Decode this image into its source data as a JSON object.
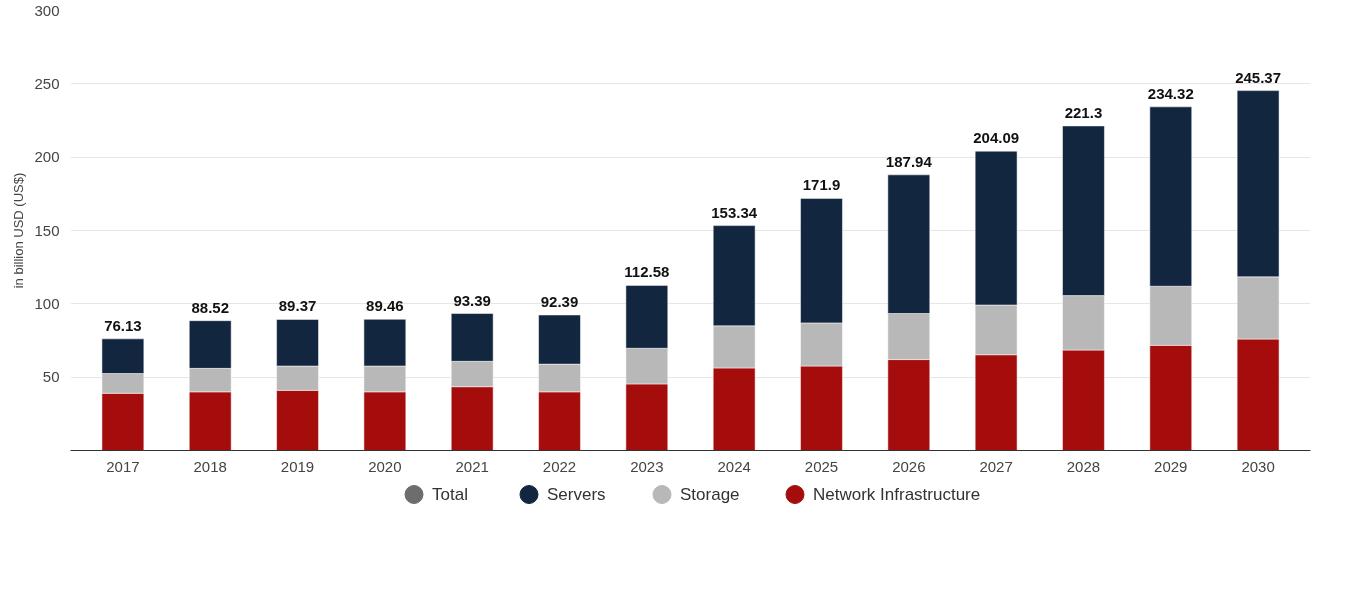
{
  "chart_data": {
    "type": "bar",
    "stacked": true,
    "ylabel": "in billion USD (US$)",
    "categories": [
      "2017",
      "2018",
      "2019",
      "2020",
      "2021",
      "2022",
      "2023",
      "2024",
      "2025",
      "2026",
      "2027",
      "2028",
      "2029",
      "2030"
    ],
    "series": [
      {
        "name": "Total",
        "color": "#6d6d6d",
        "values": [
          null,
          null,
          null,
          null,
          null,
          null,
          null,
          null,
          null,
          null,
          null,
          null,
          null,
          null
        ]
      },
      {
        "name": "Network Infrastructure",
        "color": "#a50d0d",
        "values": [
          39,
          40,
          41,
          40,
          43.5,
          40,
          45.4,
          56.3,
          57.6,
          62,
          65.3,
          68.5,
          71.7,
          76
        ]
      },
      {
        "name": "Storage",
        "color": "#b8b8b8",
        "values": [
          13.5,
          16,
          16.6,
          17.6,
          17.3,
          18.9,
          24.3,
          28.7,
          29.4,
          31.4,
          33.9,
          37.1,
          40.3,
          42.4
        ]
      },
      {
        "name": "Servers",
        "color": "#12263f",
        "values": [
          23.63,
          32.52,
          31.77,
          31.86,
          32.59,
          33.49,
          42.88,
          68.34,
          84.9,
          94.54,
          104.89,
          115.7,
          122.32,
          126.97
        ]
      }
    ],
    "totals": [
      "76.13",
      "88.52",
      "89.37",
      "89.46",
      "93.39",
      "92.39",
      "112.58",
      "153.34",
      "171.9",
      "187.94",
      "204.09",
      "221.3",
      "234.32",
      "245.37"
    ],
    "ylim": [
      0,
      300
    ],
    "yticks": [
      50,
      100,
      150,
      200,
      250,
      300
    ],
    "grid": "y",
    "legend": "bottom"
  }
}
